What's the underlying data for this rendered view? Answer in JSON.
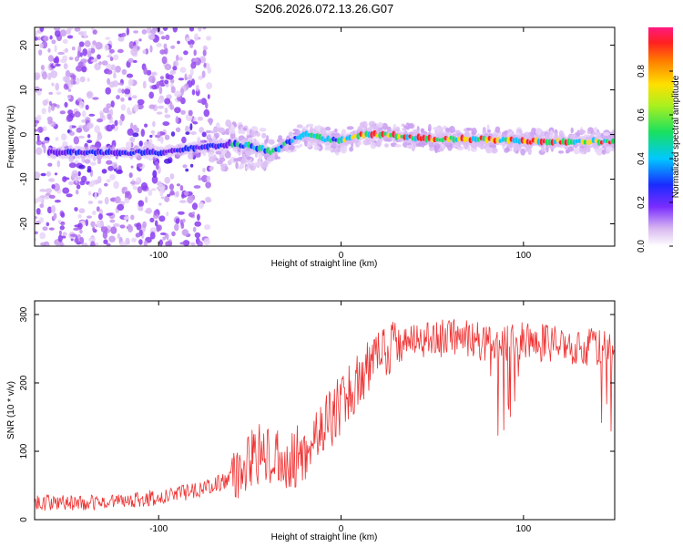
{
  "chart_data": [
    {
      "type": "heatmap",
      "title": "S206.2026.072.13.26.G07",
      "xlabel": "Height of straight line (km)",
      "ylabel": "Frequency (Hz)",
      "xlim": [
        -168,
        150
      ],
      "ylim": [
        -25,
        24
      ],
      "xticks": [
        -100,
        0,
        100
      ],
      "yticks": [
        -20,
        -10,
        0,
        10,
        20
      ],
      "colorbar": {
        "label": "Normalized spectral amplitude",
        "range": [
          0,
          1
        ],
        "ticks": [
          0.0,
          0.2,
          0.4,
          0.6,
          0.8
        ],
        "tick_labels": [
          "0.0",
          "0.2",
          "0.4",
          "0.6",
          "0.8"
        ]
      },
      "ridge": [
        {
          "x": -168,
          "y": -4
        },
        {
          "x": -120,
          "y": -4
        },
        {
          "x": -100,
          "y": -4
        },
        {
          "x": -80,
          "y": -3
        },
        {
          "x": -60,
          "y": -2
        },
        {
          "x": -45,
          "y": -3
        },
        {
          "x": -38,
          "y": -4
        },
        {
          "x": -30,
          "y": -2
        },
        {
          "x": -20,
          "y": 0
        },
        {
          "x": -10,
          "y": -1
        },
        {
          "x": 0,
          "y": -1.5
        },
        {
          "x": 12,
          "y": 0
        },
        {
          "x": 25,
          "y": 0
        },
        {
          "x": 50,
          "y": -1
        },
        {
          "x": 80,
          "y": -1
        },
        {
          "x": 100,
          "y": -1.5
        },
        {
          "x": 120,
          "y": -1.5
        },
        {
          "x": 150,
          "y": -1.5
        }
      ]
    },
    {
      "type": "line",
      "xlabel": "Height of straight line (km)",
      "ylabel": "SNR (10 * v/v)",
      "xlim": [
        -168,
        150
      ],
      "ylim": [
        0,
        320
      ],
      "xticks": [
        -100,
        0,
        100
      ],
      "yticks": [
        0,
        100,
        200,
        300
      ],
      "color": "#ee3333",
      "series_envelope": [
        {
          "x": -168,
          "y": 25
        },
        {
          "x": -140,
          "y": 25
        },
        {
          "x": -120,
          "y": 28
        },
        {
          "x": -100,
          "y": 33
        },
        {
          "x": -80,
          "y": 42
        },
        {
          "x": -65,
          "y": 55
        },
        {
          "x": -55,
          "y": 75
        },
        {
          "x": -45,
          "y": 95
        },
        {
          "x": -35,
          "y": 90
        },
        {
          "x": -28,
          "y": 88
        },
        {
          "x": -20,
          "y": 100
        },
        {
          "x": -10,
          "y": 130
        },
        {
          "x": 0,
          "y": 170
        },
        {
          "x": 10,
          "y": 205
        },
        {
          "x": 20,
          "y": 240
        },
        {
          "x": 30,
          "y": 258
        },
        {
          "x": 50,
          "y": 265
        },
        {
          "x": 70,
          "y": 265
        },
        {
          "x": 85,
          "y": 255
        },
        {
          "x": 100,
          "y": 262
        },
        {
          "x": 120,
          "y": 255
        },
        {
          "x": 150,
          "y": 250
        }
      ]
    }
  ]
}
